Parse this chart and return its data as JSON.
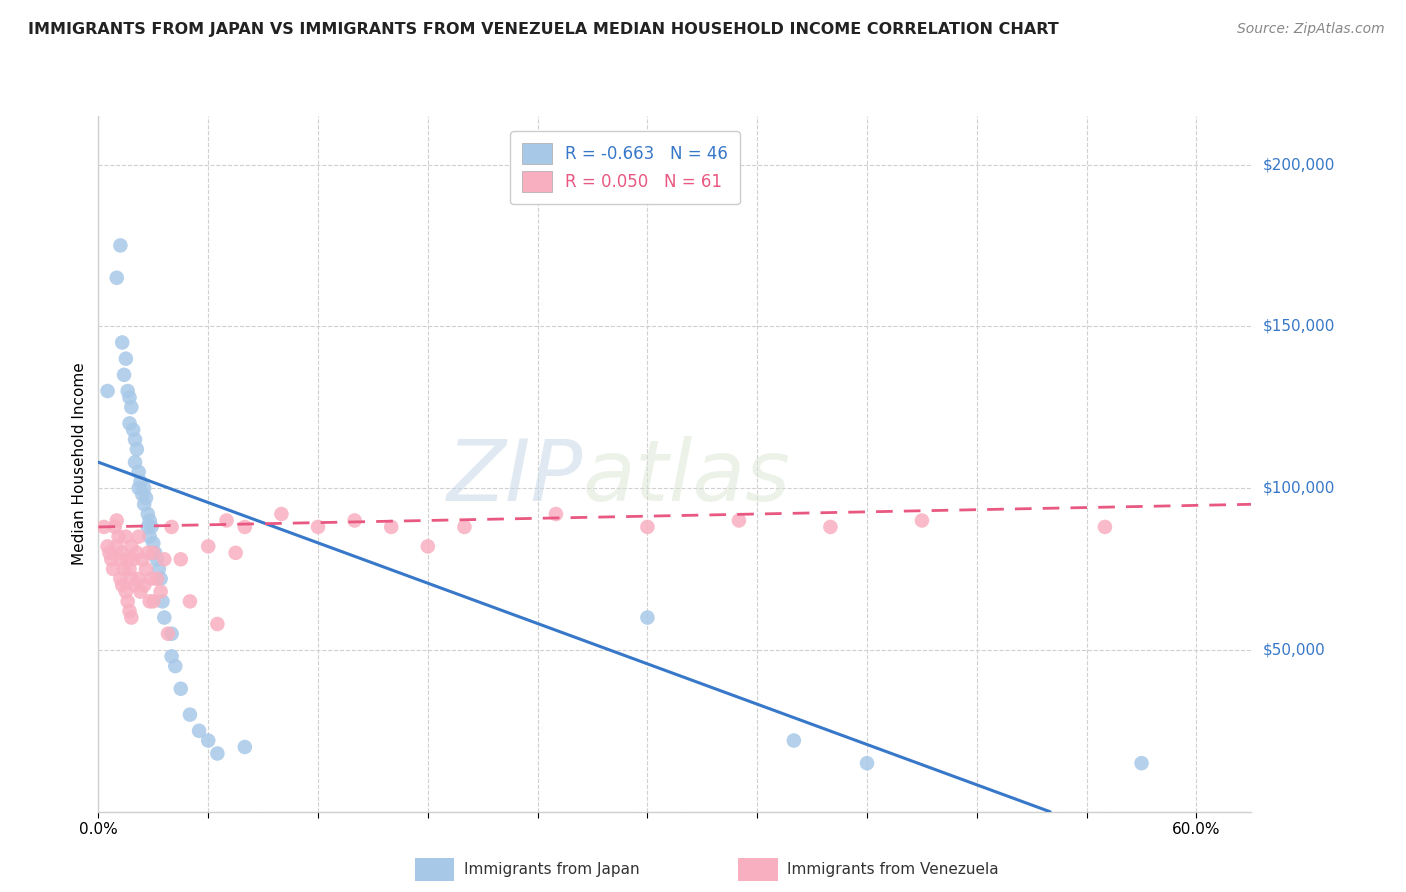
{
  "title": "IMMIGRANTS FROM JAPAN VS IMMIGRANTS FROM VENEZUELA MEDIAN HOUSEHOLD INCOME CORRELATION CHART",
  "source": "Source: ZipAtlas.com",
  "ylabel": "Median Household Income",
  "ytick_values": [
    0,
    50000,
    100000,
    150000,
    200000
  ],
  "ylim": [
    0,
    215000
  ],
  "xlim": [
    0,
    0.63
  ],
  "legend_japan_r": "-0.663",
  "legend_japan_n": "46",
  "legend_venezuela_r": "0.050",
  "legend_venezuela_n": "61",
  "japan_color": "#a8c8e8",
  "venezuela_color": "#f8b0c0",
  "japan_line_color": "#3878c8",
  "venezuela_line_color": "#e85880",
  "watermark_zip": "ZIP",
  "watermark_atlas": "atlas",
  "japan_line_x0": 0.0,
  "japan_line_y0": 108000,
  "japan_line_x1": 0.52,
  "japan_line_y1": 0,
  "venezuela_line_x0": 0.0,
  "venezuela_line_y0": 88000,
  "venezuela_line_x1": 0.63,
  "venezuela_line_y1": 95000,
  "japan_scatter_x": [
    0.005,
    0.01,
    0.012,
    0.013,
    0.014,
    0.015,
    0.016,
    0.017,
    0.017,
    0.018,
    0.019,
    0.02,
    0.02,
    0.021,
    0.022,
    0.022,
    0.023,
    0.024,
    0.025,
    0.025,
    0.026,
    0.027,
    0.027,
    0.028,
    0.028,
    0.029,
    0.03,
    0.031,
    0.032,
    0.033,
    0.034,
    0.035,
    0.036,
    0.04,
    0.04,
    0.042,
    0.045,
    0.05,
    0.055,
    0.06,
    0.065,
    0.08,
    0.3,
    0.38,
    0.42,
    0.57
  ],
  "japan_scatter_y": [
    130000,
    165000,
    175000,
    145000,
    135000,
    140000,
    130000,
    128000,
    120000,
    125000,
    118000,
    115000,
    108000,
    112000,
    105000,
    100000,
    102000,
    98000,
    100000,
    95000,
    97000,
    92000,
    88000,
    90000,
    85000,
    88000,
    83000,
    80000,
    78000,
    75000,
    72000,
    65000,
    60000,
    55000,
    48000,
    45000,
    38000,
    30000,
    25000,
    22000,
    18000,
    20000,
    60000,
    22000,
    15000,
    15000
  ],
  "venezuela_scatter_x": [
    0.003,
    0.005,
    0.006,
    0.007,
    0.008,
    0.009,
    0.01,
    0.01,
    0.011,
    0.012,
    0.012,
    0.013,
    0.013,
    0.014,
    0.015,
    0.015,
    0.016,
    0.016,
    0.017,
    0.017,
    0.018,
    0.018,
    0.018,
    0.019,
    0.02,
    0.021,
    0.022,
    0.022,
    0.023,
    0.024,
    0.025,
    0.026,
    0.027,
    0.028,
    0.029,
    0.03,
    0.03,
    0.032,
    0.034,
    0.036,
    0.038,
    0.04,
    0.045,
    0.05,
    0.06,
    0.065,
    0.07,
    0.075,
    0.08,
    0.1,
    0.12,
    0.14,
    0.16,
    0.18,
    0.2,
    0.25,
    0.3,
    0.35,
    0.4,
    0.45,
    0.55
  ],
  "venezuela_scatter_y": [
    88000,
    82000,
    80000,
    78000,
    75000,
    88000,
    90000,
    82000,
    85000,
    78000,
    72000,
    80000,
    70000,
    75000,
    85000,
    68000,
    78000,
    65000,
    75000,
    62000,
    82000,
    72000,
    60000,
    78000,
    70000,
    80000,
    85000,
    72000,
    68000,
    78000,
    70000,
    75000,
    80000,
    65000,
    72000,
    80000,
    65000,
    72000,
    68000,
    78000,
    55000,
    88000,
    78000,
    65000,
    82000,
    58000,
    90000,
    80000,
    88000,
    92000,
    88000,
    90000,
    88000,
    82000,
    88000,
    92000,
    88000,
    90000,
    88000,
    90000,
    88000
  ]
}
